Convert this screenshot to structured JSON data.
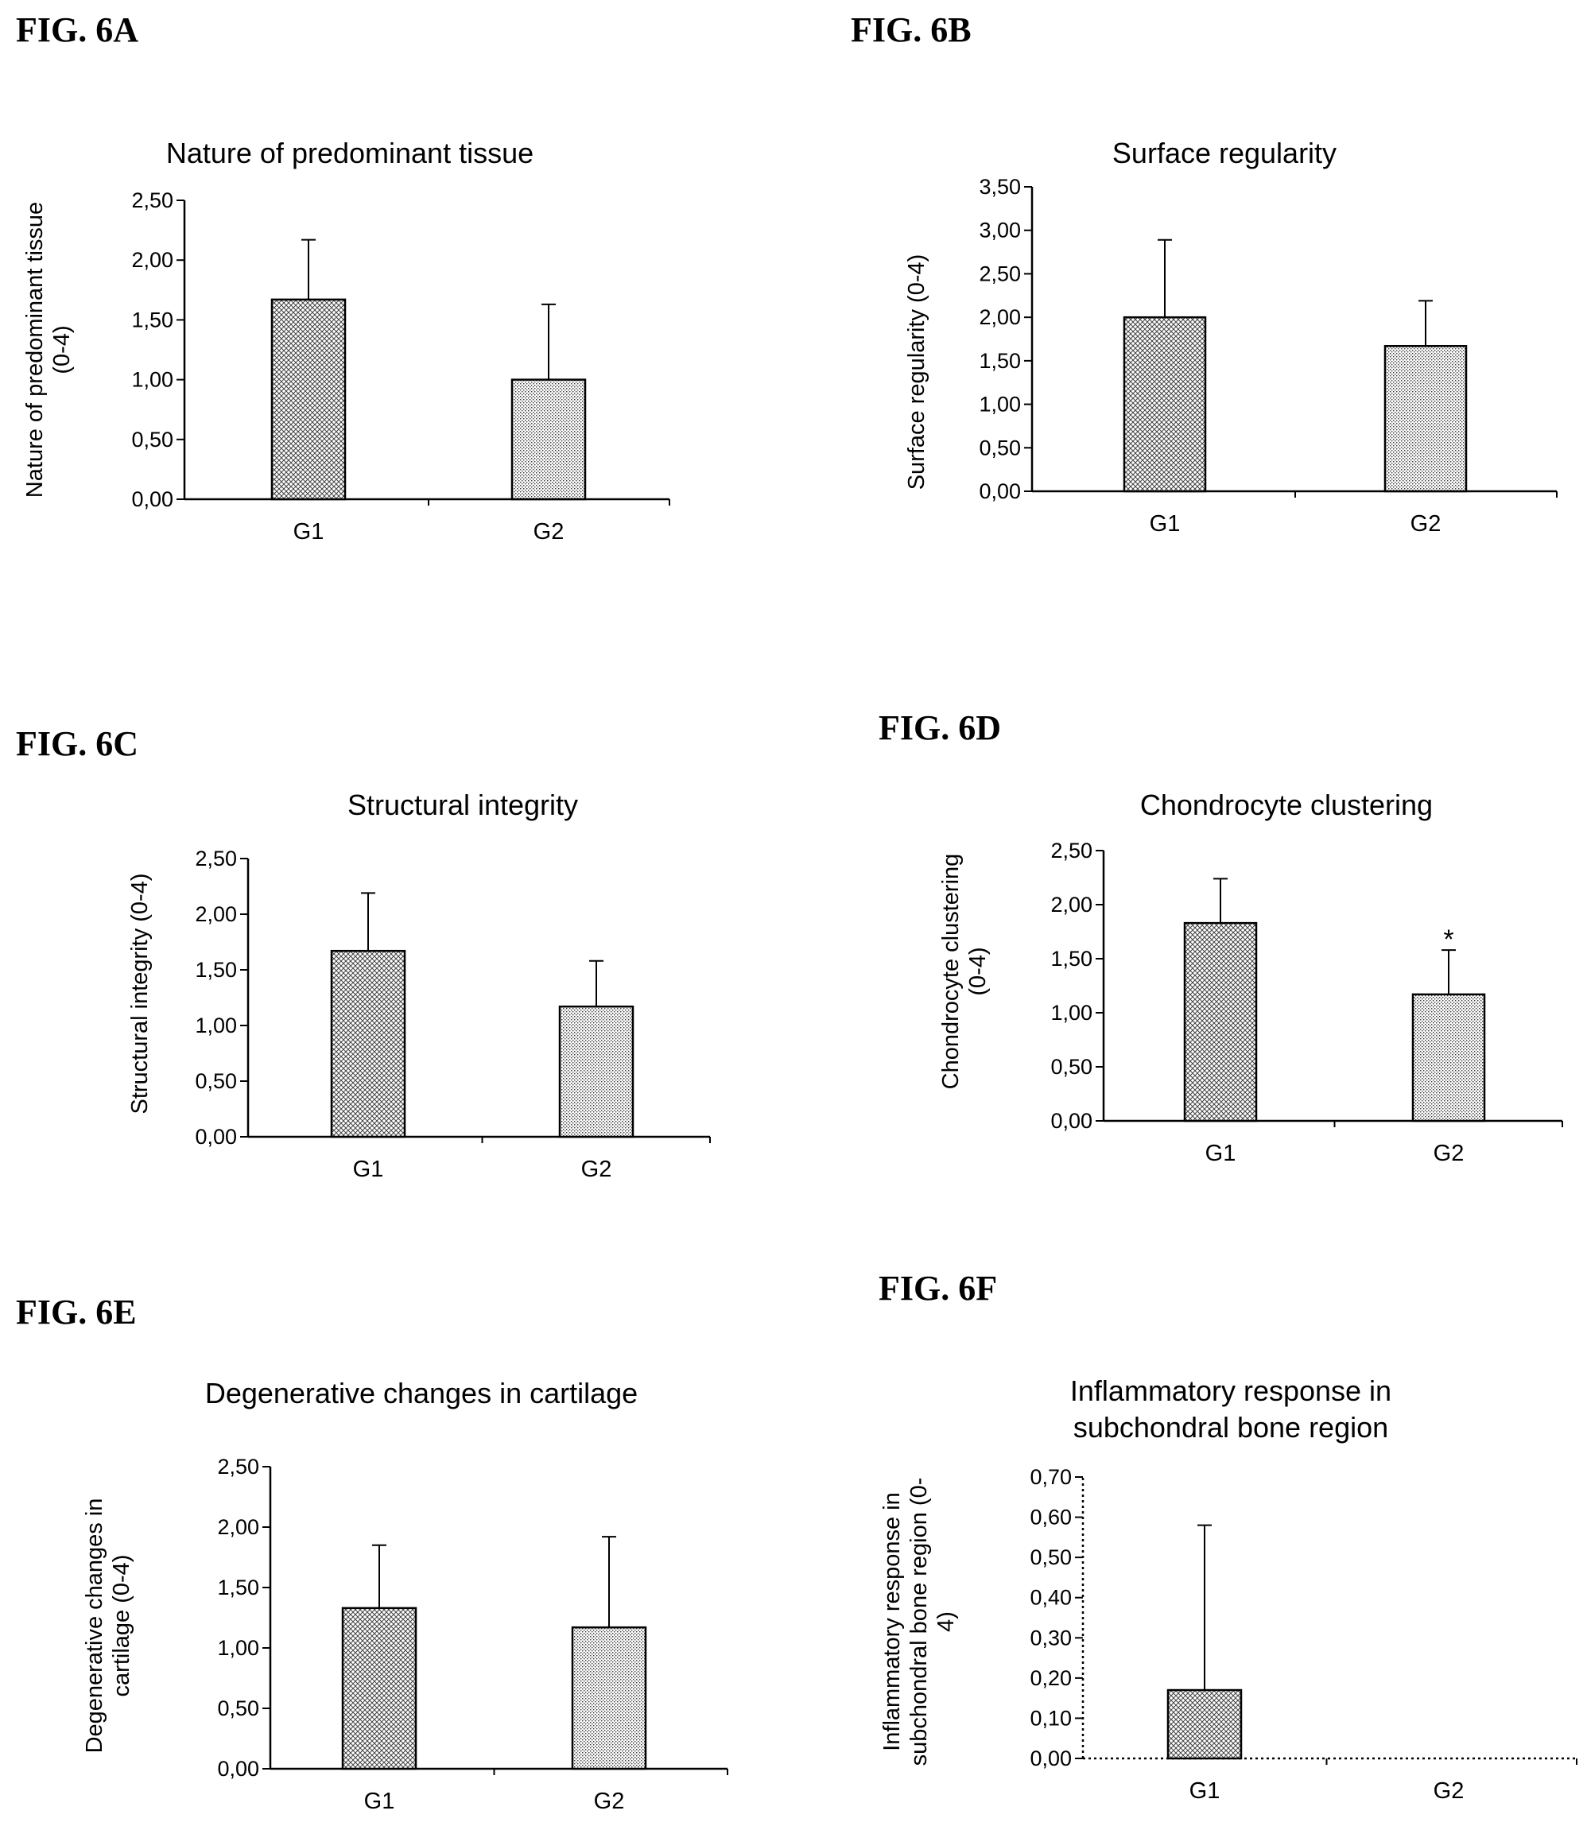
{
  "figure_labels": [
    "FIG. 6A",
    "FIG. 6B",
    "FIG. 6C",
    "FIG. 6D",
    "FIG. 6E",
    "FIG. 6F"
  ],
  "chart_data": [
    {
      "type": "bar",
      "title": "Nature of predominant tissue",
      "ylabel": "Nature of predominant tissue (0-4)",
      "categories": [
        "G1",
        "G2"
      ],
      "values": [
        1.67,
        1.0
      ],
      "error_upper": [
        0.5,
        0.63
      ],
      "ylim": [
        0,
        2.5
      ],
      "yticks": [
        "0,00",
        "0,50",
        "1,00",
        "1,50",
        "2,00",
        "2,50"
      ],
      "annotations": [],
      "grid": false
    },
    {
      "type": "bar",
      "title": "Surface regularity",
      "ylabel": "Surface regularity (0-4)",
      "categories": [
        "G1",
        "G2"
      ],
      "values": [
        2.0,
        1.67
      ],
      "error_upper": [
        0.89,
        0.52
      ],
      "ylim": [
        0,
        3.5
      ],
      "yticks": [
        "0,00",
        "0,50",
        "1,00",
        "1,50",
        "2,00",
        "2,50",
        "3,00",
        "3,50"
      ],
      "annotations": [],
      "grid": false
    },
    {
      "type": "bar",
      "title": "Structural integrity",
      "ylabel": "Structural integrity (0-4)",
      "categories": [
        "G1",
        "G2"
      ],
      "values": [
        1.67,
        1.17
      ],
      "error_upper": [
        0.52,
        0.41
      ],
      "ylim": [
        0,
        2.5
      ],
      "yticks": [
        "0,00",
        "0,50",
        "1,00",
        "1,50",
        "2,00",
        "2,50"
      ],
      "annotations": [],
      "grid": false
    },
    {
      "type": "bar",
      "title": "Chondrocyte clustering",
      "ylabel": "Chondrocyte clustering (0-4)",
      "categories": [
        "G1",
        "G2"
      ],
      "values": [
        1.83,
        1.17
      ],
      "error_upper": [
        0.41,
        0.41
      ],
      "ylim": [
        0,
        2.5
      ],
      "yticks": [
        "0,00",
        "0,50",
        "1,00",
        "1,50",
        "2,00",
        "2,50"
      ],
      "annotations": [
        {
          "category": "G2",
          "text": "*"
        }
      ],
      "grid": false
    },
    {
      "type": "bar",
      "title": "Degenerative changes in cartilage",
      "ylabel": "Degenerative changes in cartilage (0-4)",
      "categories": [
        "G1",
        "G2"
      ],
      "values": [
        1.33,
        1.17
      ],
      "error_upper": [
        0.52,
        0.75
      ],
      "ylim": [
        0,
        2.5
      ],
      "yticks": [
        "0,00",
        "0,50",
        "1,00",
        "1,50",
        "2,00",
        "2,50"
      ],
      "annotations": [],
      "grid": false
    },
    {
      "type": "bar",
      "title": "Inflammatory response in subchondral bone region",
      "ylabel": "Inflammatory response in subchondral bone region (0-4)",
      "categories": [
        "G1",
        "G2"
      ],
      "values": [
        0.17,
        0.0
      ],
      "error_upper": [
        0.41,
        0.0
      ],
      "ylim": [
        0,
        0.7
      ],
      "yticks": [
        "0,00",
        "0,10",
        "0,20",
        "0,30",
        "0,40",
        "0,50",
        "0,60",
        "0,70"
      ],
      "annotations": [],
      "grid": false
    }
  ]
}
